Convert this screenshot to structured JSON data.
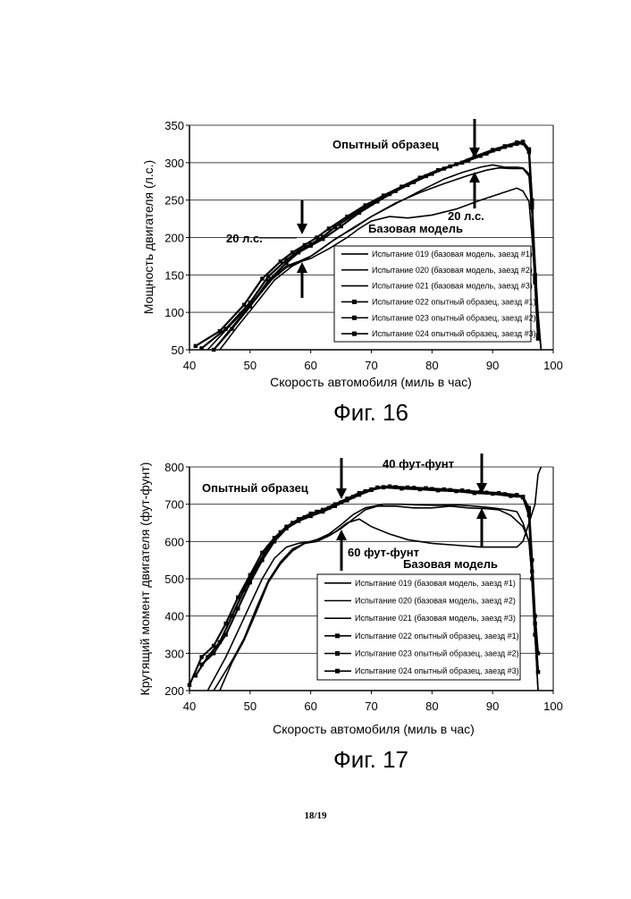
{
  "page_number": "18/19",
  "chart_data": [
    {
      "type": "line",
      "figure_label": "Фиг. 16",
      "xlabel": "Скорость автомобиля (миль в час)",
      "ylabel": "Мощность двигателя (л.с.)",
      "xlim": [
        40,
        100
      ],
      "ylim": [
        50,
        350
      ],
      "xticks": [
        40,
        50,
        60,
        70,
        80,
        90,
        100
      ],
      "yticks": [
        50,
        100,
        150,
        200,
        250,
        300,
        350
      ],
      "grid": "horizontal",
      "legend_position": "bottom-right",
      "annotations": {
        "prototype": "Опытный образец",
        "base": "Базовая модель",
        "gap_left": "20 л.с.",
        "gap_right": "20 л.с."
      },
      "series": [
        {
          "name": "Испытание 019 (базовая модель, заезд #1)",
          "marker": "none",
          "x": [
            43,
            47,
            50,
            53,
            56,
            58,
            60,
            63,
            66,
            68,
            70,
            73,
            76,
            80,
            84,
            88,
            91,
            94,
            95,
            96,
            96.5,
            97,
            97.5,
            98
          ],
          "y": [
            50,
            85,
            110,
            140,
            160,
            167,
            172,
            185,
            200,
            212,
            222,
            228,
            226,
            230,
            238,
            250,
            258,
            266,
            262,
            248,
            200,
            140,
            90,
            50
          ]
        },
        {
          "name": "Испытание 020 (базовая модель, заезд #2)",
          "marker": "none",
          "x": [
            44,
            48,
            51,
            54,
            56,
            58,
            60,
            63,
            66,
            70,
            74,
            78,
            82,
            85,
            88,
            90,
            92,
            94,
            95,
            96,
            96.5,
            97,
            97.5,
            98
          ],
          "y": [
            50,
            90,
            118,
            148,
            162,
            168,
            175,
            192,
            208,
            228,
            245,
            262,
            278,
            287,
            294,
            297,
            294,
            294,
            293,
            285,
            240,
            170,
            100,
            50
          ]
        },
        {
          "name": "Испытание 021 (базовая модель, заезд #3)",
          "marker": "none",
          "x": [
            45,
            48,
            51,
            54,
            57,
            59,
            61,
            64,
            67,
            70,
            74,
            78,
            82,
            86,
            89,
            91,
            93,
            94,
            95,
            96,
            96.5,
            97,
            97.5,
            98
          ],
          "y": [
            50,
            82,
            112,
            143,
            162,
            170,
            180,
            198,
            212,
            228,
            246,
            260,
            272,
            283,
            290,
            293,
            292,
            292,
            292,
            282,
            230,
            160,
            95,
            50
          ]
        },
        {
          "name": "Испытание 022 опытный образец, заезд #1)",
          "marker": "square",
          "x": [
            41,
            45,
            49,
            52,
            55,
            57,
            59,
            61,
            63,
            66,
            69,
            72,
            75,
            78,
            81,
            84,
            87,
            90,
            92,
            94,
            95,
            96,
            96.5,
            97,
            97.5
          ],
          "y": [
            55,
            75,
            110,
            145,
            168,
            180,
            190,
            200,
            212,
            228,
            243,
            256,
            268,
            280,
            290,
            298,
            308,
            317,
            322,
            327,
            328,
            318,
            250,
            150,
            70
          ]
        },
        {
          "name": "Испытание 023 опытный образец, заезд #2)",
          "marker": "square",
          "x": [
            42,
            46,
            50,
            53,
            56,
            58,
            60,
            62,
            64,
            67,
            70,
            73,
            76,
            79,
            82,
            85,
            88,
            90,
            92,
            94,
            95,
            96,
            96.5,
            97,
            97.5
          ],
          "y": [
            52,
            78,
            113,
            148,
            170,
            182,
            191,
            201,
            214,
            230,
            245,
            258,
            270,
            282,
            292,
            300,
            309,
            316,
            321,
            325,
            326,
            314,
            240,
            140,
            65
          ]
        },
        {
          "name": "Испытание 024 опытный образец, заезд #3)",
          "marker": "square",
          "x": [
            44,
            47,
            50,
            53,
            56,
            58,
            60,
            62,
            65,
            68,
            71,
            74,
            77,
            80,
            83,
            86,
            89,
            91,
            93,
            94,
            95,
            96,
            96.5,
            97,
            97.5
          ],
          "y": [
            50,
            78,
            108,
            142,
            166,
            180,
            189,
            198,
            215,
            233,
            248,
            262,
            274,
            285,
            295,
            303,
            312,
            318,
            323,
            327,
            327,
            316,
            245,
            145,
            65
          ]
        }
      ]
    },
    {
      "type": "line",
      "figure_label": "Фиг. 17",
      "xlabel": "Скорость автомобиля (миль в час)",
      "ylabel": "Крутящий момент двигателя (фут-фунт)",
      "xlim": [
        40,
        100
      ],
      "ylim": [
        200,
        800
      ],
      "xticks": [
        40,
        50,
        60,
        70,
        80,
        90,
        100
      ],
      "yticks": [
        200,
        300,
        400,
        500,
        600,
        700,
        800
      ],
      "grid": "horizontal",
      "legend_position": "bottom-right",
      "annotations": {
        "prototype": "Опытный образец",
        "base": "Базовая модель",
        "gap_top": "40 фут-фунт",
        "gap_bottom": "60 фут-фунт"
      },
      "series": [
        {
          "name": "Испытание 019 (базовая модель, заезд #1)",
          "marker": "none",
          "x": [
            43,
            46,
            48,
            50,
            52,
            54,
            56,
            58,
            60,
            62,
            64,
            66,
            68,
            70,
            73,
            76,
            80,
            84,
            88,
            91,
            94,
            95,
            96,
            97,
            97.5,
            98
          ],
          "y": [
            200,
            290,
            360,
            430,
            500,
            555,
            585,
            595,
            600,
            610,
            625,
            650,
            660,
            640,
            620,
            605,
            595,
            590,
            585,
            585,
            585,
            600,
            650,
            700,
            780,
            800
          ]
        },
        {
          "name": "Испытание 020 (базовая модель, заезд #2)",
          "marker": "none",
          "x": [
            44,
            47,
            49,
            51,
            53,
            55,
            57,
            59,
            61,
            63,
            65,
            67,
            69,
            71,
            74,
            77,
            80,
            83,
            86,
            89,
            91,
            93,
            95,
            96,
            96.5,
            97,
            97.5
          ],
          "y": [
            200,
            280,
            340,
            420,
            495,
            545,
            580,
            595,
            600,
            615,
            635,
            660,
            685,
            695,
            695,
            690,
            690,
            695,
            690,
            688,
            685,
            670,
            640,
            600,
            500,
            350,
            200
          ]
        },
        {
          "name": "Испытание 021 (базовая модель, заезд #3)",
          "marker": "none",
          "x": [
            45,
            47,
            49,
            51,
            53,
            55,
            57,
            59,
            61,
            63,
            65,
            67,
            69,
            72,
            75,
            78,
            81,
            84,
            87,
            90,
            92,
            94,
            95,
            96,
            96.5,
            97,
            97.5
          ],
          "y": [
            200,
            275,
            335,
            410,
            490,
            540,
            575,
            595,
            605,
            620,
            645,
            672,
            690,
            700,
            700,
            698,
            697,
            698,
            695,
            690,
            686,
            680,
            650,
            600,
            500,
            350,
            200
          ]
        },
        {
          "name": "Испытание 022 опытный образец, заезд #1)",
          "marker": "square",
          "x": [
            40,
            42,
            44,
            46,
            48,
            50,
            52,
            54,
            56,
            58,
            60,
            62,
            64,
            66,
            68,
            70,
            72,
            75,
            78,
            81,
            84,
            87,
            90,
            93,
            95,
            96,
            96.5,
            97,
            97.5
          ],
          "y": [
            215,
            290,
            320,
            380,
            450,
            510,
            570,
            610,
            640,
            660,
            675,
            685,
            700,
            715,
            730,
            740,
            745,
            742,
            740,
            737,
            735,
            730,
            728,
            722,
            720,
            690,
            550,
            400,
            300
          ]
        },
        {
          "name": "Испытание 023 опытный образец, заезд #2)",
          "marker": "square",
          "x": [
            41,
            43,
            45,
            47,
            49,
            51,
            53,
            55,
            57,
            59,
            61,
            63,
            65,
            67,
            69,
            71,
            73,
            76,
            79,
            82,
            85,
            88,
            91,
            94,
            95,
            96,
            96.5,
            97,
            97.5
          ],
          "y": [
            240,
            290,
            330,
            400,
            470,
            530,
            585,
            625,
            650,
            665,
            680,
            690,
            705,
            720,
            735,
            745,
            748,
            745,
            743,
            740,
            737,
            733,
            730,
            725,
            720,
            680,
            520,
            380,
            250
          ]
        },
        {
          "name": "Испытание 024 опытный образец, заезд #3)",
          "marker": "square",
          "x": [
            42,
            44,
            46,
            48,
            50,
            52,
            54,
            56,
            58,
            60,
            62,
            64,
            66,
            68,
            70,
            72,
            74,
            77,
            80,
            83,
            86,
            89,
            92,
            94,
            95,
            96,
            96.5,
            97,
            97.5
          ],
          "y": [
            270,
            300,
            350,
            420,
            490,
            550,
            600,
            635,
            655,
            668,
            680,
            695,
            710,
            725,
            738,
            746,
            746,
            744,
            741,
            738,
            735,
            731,
            727,
            723,
            718,
            670,
            500,
            350,
            250
          ]
        }
      ]
    }
  ]
}
